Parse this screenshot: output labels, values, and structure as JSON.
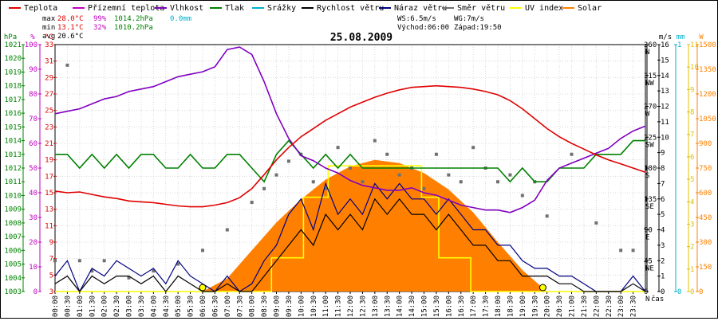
{
  "chart_data": {
    "type": "line",
    "title": "25.08.2009",
    "xlabel": "čas",
    "x_ticks": [
      "00:00",
      "00:30",
      "01:00",
      "01:30",
      "02:00",
      "02:30",
      "03:00",
      "03:30",
      "04:00",
      "04:30",
      "05:00",
      "05:30",
      "06:00",
      "06:30",
      "07:00",
      "07:30",
      "08:00",
      "08:30",
      "09:00",
      "09:30",
      "10:00",
      "10:30",
      "11:00",
      "11:30",
      "12:00",
      "12:30",
      "13:00",
      "13:30",
      "14:00",
      "14:30",
      "15:00",
      "15:30",
      "16:00",
      "16:30",
      "17:00",
      "17:30",
      "18:00",
      "18:30",
      "19:00",
      "19:30",
      "20:00",
      "20:30",
      "21:00",
      "21:30",
      "22:00",
      "22:30",
      "23:00",
      "23:30"
    ],
    "legend": [
      {
        "name": "Teplota",
        "color": "#e00000",
        "marker": "line"
      },
      {
        "name": "Přízemní teplota",
        "color": "#c000c0",
        "marker": "line"
      },
      {
        "name": "Vlhkost",
        "color": "#8000c0",
        "marker": "line"
      },
      {
        "name": "Tlak",
        "color": "#008000",
        "marker": "line"
      },
      {
        "name": "Srážky",
        "color": "#00b0d0",
        "marker": "line"
      },
      {
        "name": "Rychlost větru",
        "color": "#000000",
        "marker": "line"
      },
      {
        "name": "Náraz větru",
        "color": "#000080",
        "marker": "line"
      },
      {
        "name": "Směr větru",
        "color": "#707070",
        "marker": "line"
      },
      {
        "name": "UV index",
        "color": "#ffff00",
        "marker": "line"
      },
      {
        "name": "Solar",
        "color": "#ff8000",
        "marker": "line"
      }
    ],
    "stats": {
      "max_label": "max",
      "max_temp": "28.0°C",
      "max_hum": "99%",
      "max_press": "1014.2hPa",
      "rain": "0.0mm",
      "min_label": "min",
      "min_temp": "13.1°C",
      "min_hum": "32%",
      "min_press": "1010.2hPa",
      "avg_label": "avg",
      "avg_temp": "20.6°C",
      "ws": "WS:6.5m/s",
      "wg": "WG:7m/s",
      "sunrise": "Východ:06:00",
      "sunset": "Západ:19:50"
    },
    "axes": {
      "pressure": {
        "unit": "hPa",
        "color": "#008000",
        "ticks": [
          "1021",
          "1020",
          "1019",
          "1018",
          "1017",
          "1016",
          "1015",
          "1014",
          "1013",
          "1012",
          "1011",
          "1010",
          "1009",
          "1008",
          "1007",
          "1006",
          "1005",
          "1004",
          "1003"
        ],
        "range": [
          1003,
          1021
        ]
      },
      "humidity": {
        "unit": "%",
        "color": "#c000c0",
        "ticks": [
          "100",
          "90",
          "80",
          "70",
          "60",
          "50",
          "40",
          "30",
          "20",
          "10",
          "0"
        ],
        "range": [
          0,
          100
        ]
      },
      "temperature": {
        "unit": "°C",
        "color": "#e00000",
        "ticks": [
          "33",
          "31",
          "29",
          "27",
          "25",
          "23",
          "21",
          "19",
          "17",
          "15",
          "13",
          "11",
          "9",
          "7",
          "5",
          "3"
        ],
        "range": [
          3,
          33
        ]
      },
      "direction": {
        "ticks": [
          "360",
          "315",
          "270",
          "225",
          "180",
          "135",
          "90",
          "45",
          "0"
        ],
        "labels": [
          "N",
          "NW",
          "W",
          "SW",
          "S",
          "SE",
          "E",
          "NE",
          "N"
        ],
        "range": [
          0,
          360
        ]
      },
      "wind": {
        "unit": "m/s",
        "ticks": [
          "16",
          "15",
          "14",
          "13",
          "12",
          "11",
          "10",
          "9",
          "8",
          "7",
          "6",
          "5",
          "4",
          "3",
          "2",
          "1",
          "0"
        ],
        "range": [
          0,
          16
        ]
      },
      "rain": {
        "unit": "mm",
        "color": "#00b0d0",
        "ticks": [
          "1",
          "0"
        ],
        "range": [
          0,
          1
        ]
      },
      "uv": {
        "unit": "UV",
        "color": "#e0c000",
        "ticks": [
          "11",
          "10",
          "9",
          "8",
          "7",
          "6",
          "5",
          "4",
          "3",
          "2",
          "1",
          "0"
        ],
        "range": [
          0,
          11
        ]
      },
      "solar": {
        "unit": "W",
        "color": "#ff8000",
        "ticks": [
          "1500",
          "1350",
          "1200",
          "1050",
          "900",
          "750",
          "600",
          "450",
          "300",
          "150",
          "0"
        ],
        "range": [
          0,
          1500
        ]
      }
    },
    "series": [
      {
        "name": "Teplota",
        "axis": "temperature",
        "x": [
          0,
          0.5,
          1,
          1.5,
          2,
          2.5,
          3,
          3.5,
          4,
          4.5,
          5,
          5.5,
          6,
          6.5,
          7,
          7.5,
          8,
          8.5,
          9,
          9.5,
          10,
          10.5,
          11,
          11.5,
          12,
          12.5,
          13,
          13.5,
          14,
          14.5,
          15,
          15.5,
          16,
          16.5,
          17,
          17.5,
          18,
          18.5,
          19,
          19.5,
          20,
          20.5,
          21,
          21.5,
          22,
          22.5,
          23,
          23.5,
          24
        ],
        "y": [
          15.2,
          15,
          15.1,
          14.8,
          14.5,
          14.3,
          14,
          13.9,
          13.8,
          13.6,
          13.4,
          13.3,
          13.3,
          13.5,
          13.8,
          14.4,
          15.5,
          17.2,
          19,
          20.5,
          21.8,
          22.8,
          23.8,
          24.6,
          25.4,
          26,
          26.6,
          27.1,
          27.5,
          27.8,
          27.9,
          28,
          27.9,
          27.8,
          27.6,
          27.3,
          26.9,
          26.2,
          25.2,
          24,
          22.8,
          21.8,
          21,
          20.3,
          19.6,
          19,
          18.5,
          18,
          17.5
        ]
      },
      {
        "name": "Vlhkost",
        "axis": "humidity",
        "x": [
          0,
          0.5,
          1,
          1.5,
          2,
          2.5,
          3,
          3.5,
          4,
          4.5,
          5,
          5.5,
          6,
          6.5,
          7,
          7.5,
          8,
          8.5,
          9,
          9.5,
          10,
          10.5,
          11,
          11.5,
          12,
          12.5,
          13,
          13.5,
          14,
          14.5,
          15,
          15.5,
          16,
          16.5,
          17,
          17.5,
          18,
          18.5,
          19,
          19.5,
          20,
          20.5,
          21,
          21.5,
          22,
          22.5,
          23,
          23.5,
          24
        ],
        "y": [
          72,
          73,
          74,
          76,
          78,
          79,
          81,
          82,
          83,
          85,
          87,
          88,
          89,
          91,
          98,
          99,
          96,
          85,
          72,
          62,
          55,
          53,
          50,
          48,
          45,
          43,
          42,
          41,
          41,
          42,
          40,
          39,
          37,
          35,
          34,
          33,
          33,
          32,
          34,
          37,
          45,
          50,
          52,
          54,
          56,
          58,
          62,
          65,
          67
        ]
      },
      {
        "name": "Tlak",
        "axis": "pressure",
        "x": [
          0,
          0.5,
          1,
          1.5,
          2,
          2.5,
          3,
          3.5,
          4,
          4.5,
          5,
          5.5,
          6,
          6.5,
          7,
          7.5,
          8,
          8.5,
          9,
          9.5,
          10,
          10.5,
          11,
          11.5,
          12,
          12.5,
          13,
          13.5,
          14,
          14.5,
          15,
          15.5,
          16,
          16.5,
          17,
          17.5,
          18,
          18.5,
          19,
          19.5,
          20,
          20.5,
          21,
          21.5,
          22,
          22.5,
          23,
          23.5,
          24
        ],
        "y": [
          1013,
          1013,
          1012,
          1013,
          1012,
          1013,
          1012,
          1013,
          1013,
          1012,
          1012,
          1013,
          1012,
          1012,
          1013,
          1013,
          1012,
          1011,
          1013,
          1014,
          1013,
          1012,
          1013,
          1012,
          1013,
          1012,
          1012,
          1012,
          1012,
          1012,
          1012,
          1012,
          1012,
          1012,
          1012,
          1012,
          1012,
          1011,
          1012,
          1011,
          1011,
          1012,
          1012,
          1012,
          1013,
          1013,
          1013,
          1014,
          1014
        ]
      },
      {
        "name": "Rychlost větru",
        "axis": "wind",
        "x": [
          0,
          0.5,
          1,
          1.5,
          2,
          2.5,
          3,
          3.5,
          4,
          4.5,
          5,
          5.5,
          6,
          6.5,
          7,
          7.5,
          8,
          8.5,
          9,
          9.5,
          10,
          10.5,
          11,
          11.5,
          12,
          12.5,
          13,
          13.5,
          14,
          14.5,
          15,
          15.5,
          16,
          16.5,
          17,
          17.5,
          18,
          18.5,
          19,
          19.5,
          20,
          20.5,
          21,
          21.5,
          22,
          22.5,
          23,
          23.5,
          24
        ],
        "y": [
          0.5,
          1,
          0,
          1,
          0.5,
          1,
          1,
          0.5,
          1,
          0,
          1,
          0.5,
          0,
          0,
          0.5,
          0,
          0,
          1,
          2,
          3,
          4,
          3,
          5,
          4,
          5,
          4,
          6,
          5,
          6,
          5,
          5,
          4,
          5,
          4,
          3,
          3,
          2,
          2,
          1,
          1,
          1,
          0.5,
          0.5,
          0,
          0,
          0,
          0,
          0.5,
          0
        ]
      },
      {
        "name": "Náraz větru",
        "axis": "wind",
        "x": [
          0,
          0.5,
          1,
          1.5,
          2,
          2.5,
          3,
          3.5,
          4,
          4.5,
          5,
          5.5,
          6,
          6.5,
          7,
          7.5,
          8,
          8.5,
          9,
          9.5,
          10,
          10.5,
          11,
          11.5,
          12,
          12.5,
          13,
          13.5,
          14,
          14.5,
          15,
          15.5,
          16,
          16.5,
          17,
          17.5,
          18,
          18.5,
          19,
          19.5,
          20,
          20.5,
          21,
          21.5,
          22,
          22.5,
          23,
          23.5,
          24
        ],
        "y": [
          1,
          2,
          0,
          1.5,
          1,
          2,
          1.5,
          1,
          1.5,
          0.5,
          2,
          1,
          0.5,
          0,
          1,
          0,
          0.5,
          2,
          3,
          5,
          6,
          4,
          7,
          5,
          6,
          5,
          7,
          6,
          7,
          6,
          6,
          5,
          6,
          5,
          4,
          4,
          3,
          3,
          2,
          1.5,
          1.5,
          1,
          1,
          0.5,
          0,
          0,
          0,
          1,
          0
        ]
      },
      {
        "name": "Směr větru",
        "axis": "direction",
        "type": "scatter",
        "x": [
          0,
          0.5,
          1,
          1.5,
          2,
          3,
          4,
          5,
          6,
          7,
          8,
          8.5,
          9,
          9.5,
          10,
          10.5,
          11,
          11.5,
          12,
          12.5,
          13,
          13.5,
          14,
          14.5,
          15,
          15.5,
          16,
          16.5,
          17,
          17.5,
          18,
          18.5,
          19,
          19.5,
          20,
          21,
          22,
          23,
          23.5
        ],
        "y": [
          45,
          330,
          45,
          30,
          45,
          20,
          30,
          40,
          60,
          90,
          130,
          150,
          170,
          190,
          200,
          160,
          150,
          210,
          180,
          160,
          220,
          200,
          170,
          180,
          150,
          200,
          170,
          160,
          210,
          180,
          160,
          170,
          140,
          160,
          110,
          200,
          100,
          60,
          60
        ]
      },
      {
        "name": "UV index",
        "axis": "uv",
        "x": [
          0,
          6,
          8.8,
          8.8,
          10.1,
          10.1,
          11.1,
          11.1,
          14.9,
          14.9,
          15.6,
          15.6,
          16.9,
          16.9,
          24
        ],
        "y": [
          0,
          0,
          0,
          1.5,
          1.5,
          4.2,
          4.2,
          5.6,
          5.6,
          4.2,
          4.2,
          1.5,
          1.5,
          0,
          0
        ]
      },
      {
        "name": "Solar",
        "axis": "solar",
        "x": [
          6,
          7,
          8,
          9,
          10,
          11,
          12,
          13,
          14,
          15,
          16,
          17,
          18,
          19,
          20
        ],
        "y": [
          0,
          80,
          250,
          420,
          560,
          680,
          760,
          800,
          780,
          720,
          620,
          480,
          300,
          130,
          0
        ]
      }
    ]
  }
}
